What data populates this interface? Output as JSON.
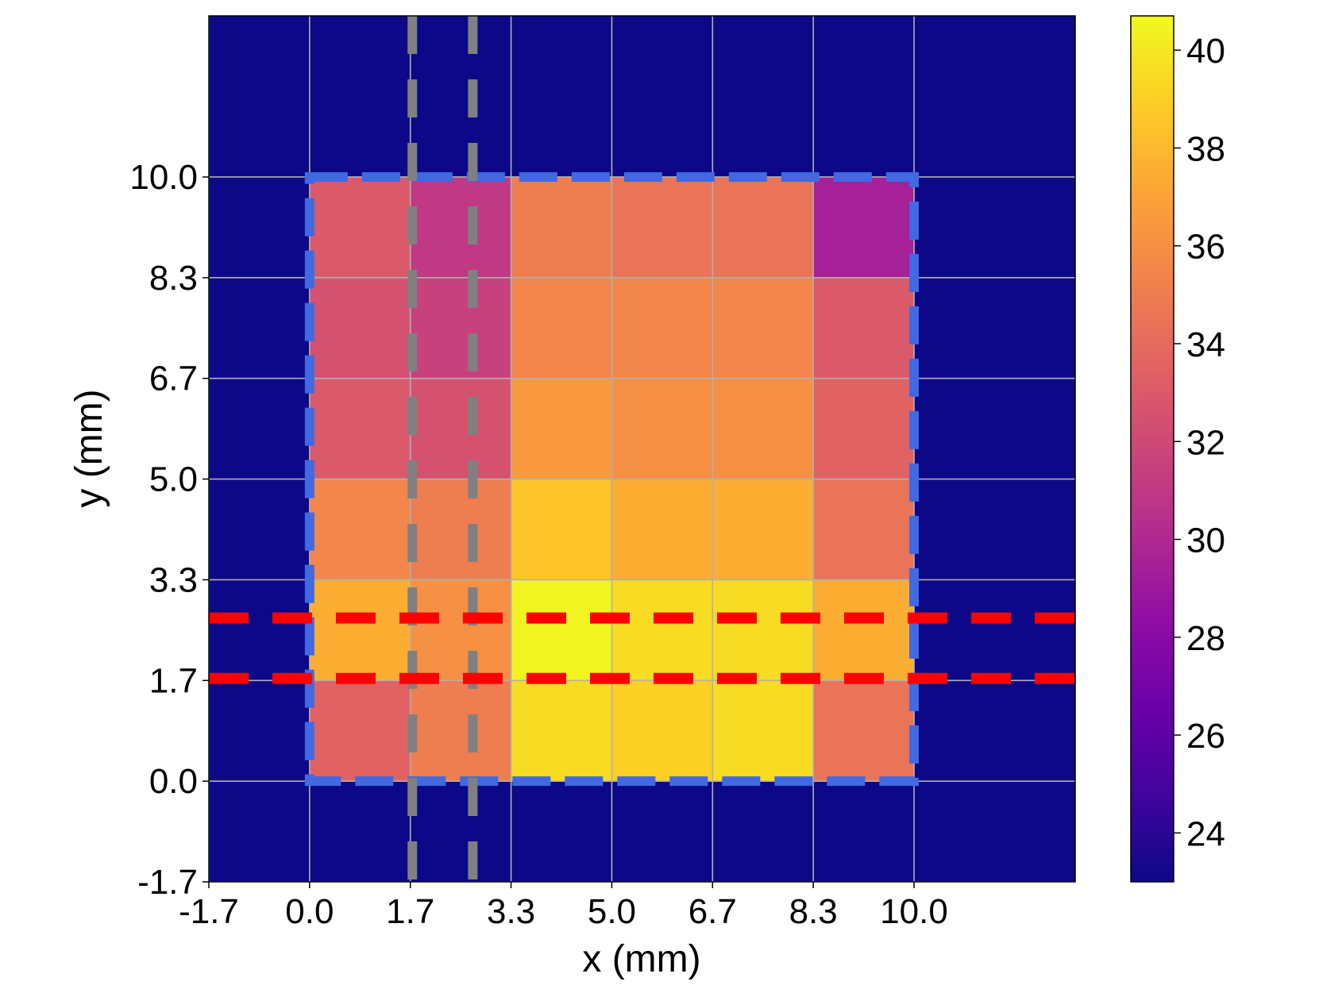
{
  "chart_data": {
    "type": "heatmap",
    "xlabel": "x (mm)",
    "ylabel": "y (mm)",
    "xlim": [
      -1.6667,
      12.6667
    ],
    "ylim": [
      -1.6667,
      12.6667
    ],
    "x_ticks": [
      -1.6667,
      0,
      1.6667,
      3.3333,
      5.0,
      6.6667,
      8.3333,
      10.0
    ],
    "x_tick_labels": [
      "-1.7",
      "0.0",
      "1.7",
      "3.3",
      "5.0",
      "6.7",
      "8.3",
      "10.0"
    ],
    "y_ticks": [
      -1.6667,
      0,
      1.6667,
      3.3333,
      5.0,
      6.6667,
      8.3333,
      10.0
    ],
    "y_tick_labels": [
      "-1.7",
      "0.0",
      "1.7",
      "3.3",
      "5.0",
      "6.7",
      "8.3",
      "10.0"
    ],
    "grid": true,
    "background_value": 23.0,
    "cell_size": 1.6667,
    "region": {
      "x0": 0,
      "x1": 10,
      "y0": 0,
      "y1": 10
    },
    "rows_bottom_to_top": [
      [
        33.5,
        35.0,
        39.5,
        39.0,
        39.5,
        34.5
      ],
      [
        37.5,
        36.0,
        40.5,
        39.5,
        39.5,
        37.5
      ],
      [
        35.5,
        35.0,
        38.5,
        37.5,
        37.5,
        34.5
      ],
      [
        33.0,
        32.5,
        36.5,
        36.0,
        36.0,
        33.5
      ],
      [
        32.5,
        31.5,
        35.5,
        35.5,
        35.5,
        33.0
      ],
      [
        33.0,
        31.0,
        35.0,
        34.5,
        34.5,
        29.5
      ]
    ],
    "colorbar": {
      "colormap": "plasma",
      "min": 23.0,
      "max": 40.7,
      "ticks": [
        24,
        26,
        28,
        30,
        32,
        34,
        36,
        38,
        40
      ],
      "tick_labels": [
        "24",
        "26",
        "28",
        "30",
        "32",
        "34",
        "36",
        "38",
        "40"
      ]
    },
    "overlays": {
      "blue_dashed_rect": {
        "x0": 0,
        "x1": 10,
        "y0": 0,
        "y1": 10,
        "color": "#4169e1"
      },
      "red_dashed_hlines": {
        "y": [
          1.7,
          2.7
        ],
        "color": "#ff0000"
      },
      "gray_dashed_vlines": {
        "x": [
          1.7,
          2.7
        ],
        "color": "#808080"
      }
    }
  }
}
